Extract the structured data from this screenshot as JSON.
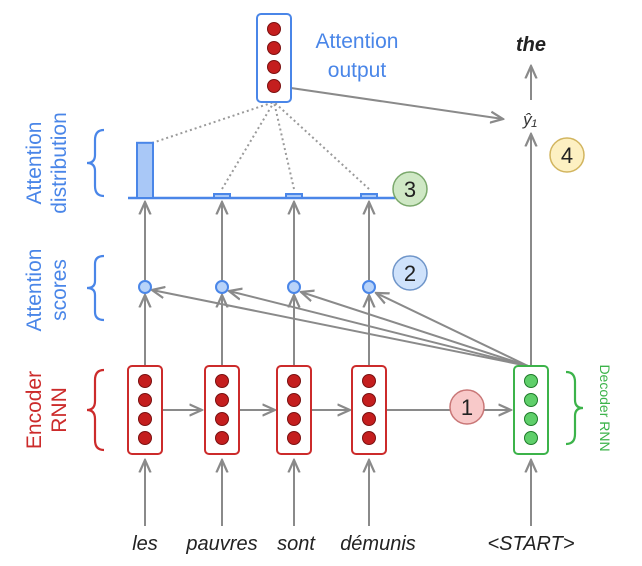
{
  "encoder": {
    "label_line1": "Encoder",
    "label_line2": "RNN",
    "words": [
      "les",
      "pauvres",
      "sont",
      "démunis"
    ]
  },
  "decoder": {
    "label": "Decoder RNN",
    "start_token": "<START>",
    "output_word": "the",
    "output_symbol": "ŷ₁"
  },
  "attention": {
    "output_line1": "Attention",
    "output_line2": "output",
    "scores_line1": "Attention",
    "scores_line2": "scores",
    "distribution_line1": "Attention",
    "distribution_line2": "distribution",
    "weights": [
      0.92,
      0.03,
      0.03,
      0.02
    ]
  },
  "steps": [
    "1",
    "2",
    "3",
    "4"
  ],
  "colors": {
    "encoder": "#cc2b2b",
    "decoder": "#3cb34a",
    "attention": "#4a86e8",
    "arrow": "#8a8a8a",
    "badge1": "#f8c9c9",
    "badge2": "#cfe2fb",
    "badge3": "#cfe8c5",
    "badge4": "#fdf0c2"
  }
}
